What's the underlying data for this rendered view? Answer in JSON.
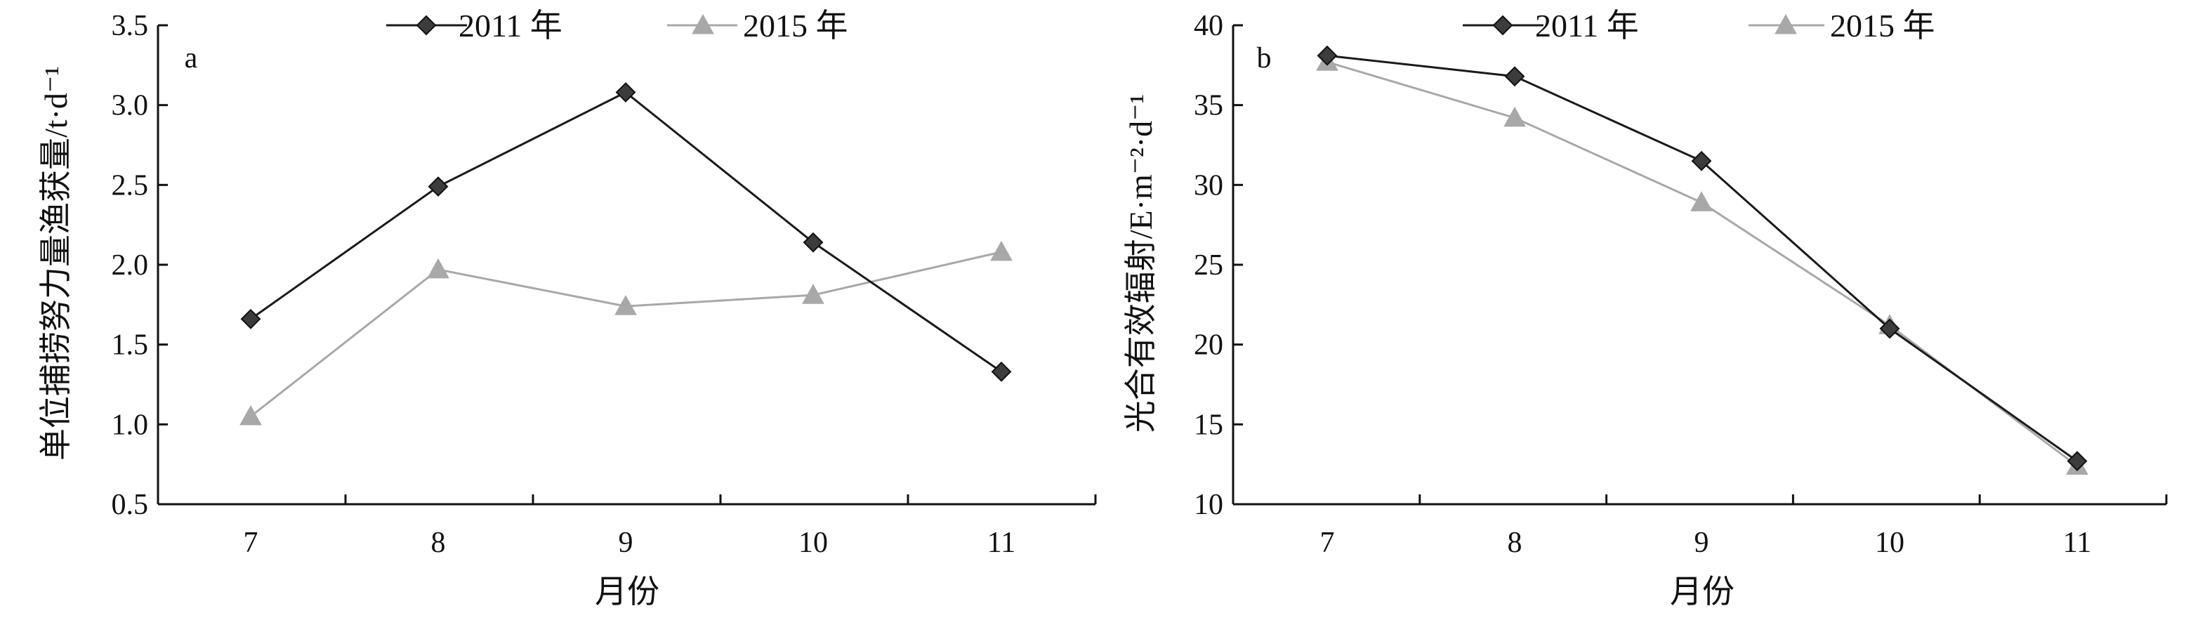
{
  "chart_data": [
    {
      "type": "line",
      "panel_label": "a",
      "categories": [
        "7",
        "8",
        "9",
        "10",
        "11"
      ],
      "series": [
        {
          "name": "2011 年",
          "values": [
            1.66,
            2.49,
            3.08,
            2.14,
            1.33
          ],
          "color": "#1a1a1a",
          "marker": "diamond",
          "marker_color": "#3c3c3c"
        },
        {
          "name": "2015 年",
          "values": [
            1.05,
            1.97,
            1.74,
            1.81,
            2.08
          ],
          "color": "#a8a8a8",
          "marker": "triangle",
          "marker_color": "#a8a8a8"
        }
      ],
      "xlabel": "月份",
      "ylabel": "单位捕捞努力量渔获量/t·d⁻¹",
      "ylim": [
        0.5,
        3.5
      ],
      "yticks": [
        "0.5",
        "1.0",
        "1.5",
        "2.0",
        "2.5",
        "3.0",
        "3.5"
      ],
      "grid": false,
      "legend_position": "top"
    },
    {
      "type": "line",
      "panel_label": "b",
      "categories": [
        "7",
        "8",
        "9",
        "10",
        "11"
      ],
      "series": [
        {
          "name": "2011 年",
          "values": [
            38.1,
            36.8,
            31.5,
            21.0,
            12.7
          ],
          "color": "#1a1a1a",
          "marker": "diamond",
          "marker_color": "#3c3c3c"
        },
        {
          "name": "2015 年",
          "values": [
            37.7,
            34.2,
            28.9,
            21.2,
            12.4
          ],
          "color": "#a8a8a8",
          "marker": "triangle",
          "marker_color": "#a8a8a8"
        }
      ],
      "xlabel": "月份",
      "ylabel": "光合有效辐射/E·m⁻²·d⁻¹",
      "ylim": [
        10,
        40
      ],
      "yticks": [
        "10",
        "15",
        "20",
        "25",
        "30",
        "35",
        "40"
      ],
      "grid": false,
      "legend_position": "top"
    }
  ]
}
